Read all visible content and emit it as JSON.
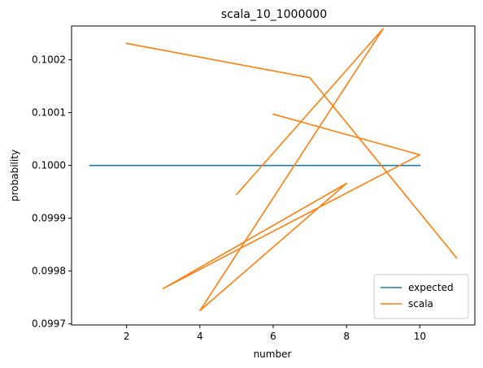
{
  "chart_data": {
    "type": "line",
    "title": "scala_10_1000000",
    "xlabel": "number",
    "ylabel": "probability",
    "xlim": [
      0.5,
      11.5
    ],
    "ylim": [
      0.099698,
      0.100264
    ],
    "xticks": [
      2,
      4,
      6,
      8,
      10
    ],
    "xtick_labels": [
      "2",
      "4",
      "6",
      "8",
      "10"
    ],
    "yticks": [
      0.0997,
      0.0998,
      0.0999,
      0.1,
      0.1001,
      0.1002
    ],
    "ytick_labels": [
      "0.0997",
      "0.0998",
      "0.0999",
      "0.1000",
      "0.1001",
      "0.1002"
    ],
    "grid": false,
    "legend": "lower-right",
    "series": [
      {
        "name": "expected",
        "color": "#1f77b4",
        "x": [
          1,
          10
        ],
        "y": [
          0.1,
          0.1
        ]
      },
      {
        "name": "scala",
        "color": "#ff7f0e",
        "x": [
          6,
          10,
          3,
          8,
          4,
          9,
          5
        ],
        "y": [
          0.100097,
          0.10002,
          0.099767,
          0.099966,
          0.099725,
          0.100259,
          0.099945
        ]
      },
      {
        "name": "",
        "color": "#ff7f0e",
        "x": [
          2,
          7,
          11
        ],
        "y": [
          0.100231,
          0.100166,
          0.099825
        ]
      }
    ]
  }
}
